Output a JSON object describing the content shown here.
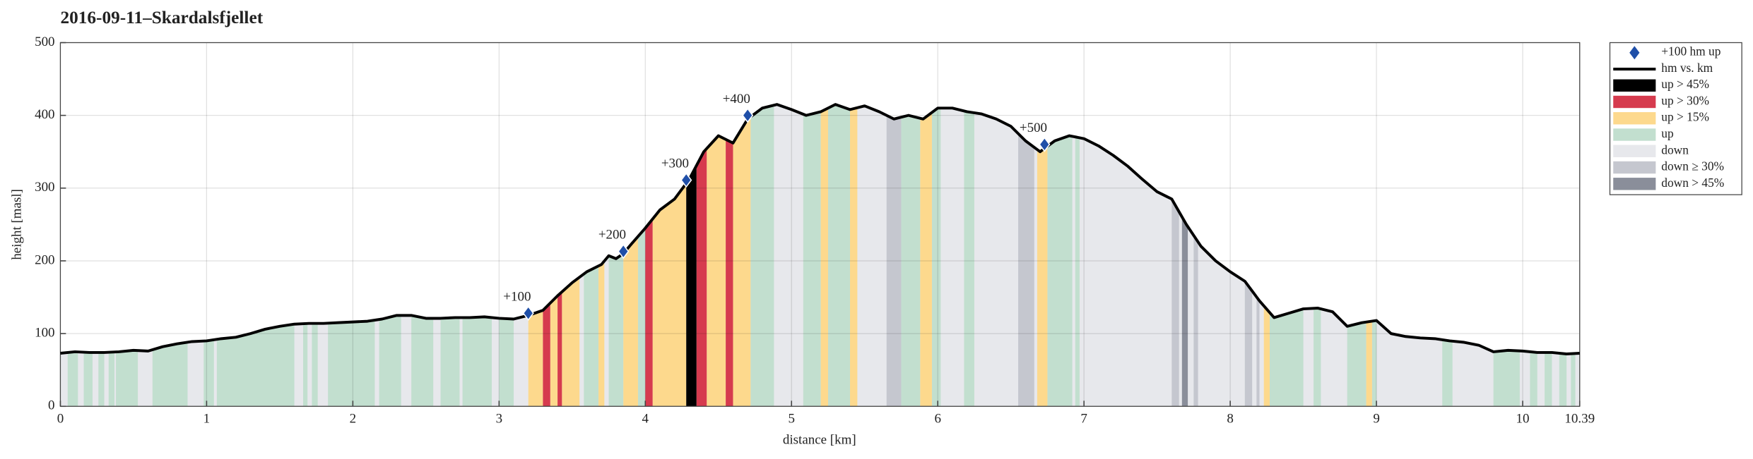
{
  "chart_data": {
    "type": "elevation-profile",
    "title": "2016-09-11–Skardalsfjellet",
    "x_label": "distance [km]",
    "y_label": "height [masl]",
    "xlim": [
      0,
      10.39
    ],
    "xticks": [
      0,
      1,
      2,
      3,
      4,
      5,
      6,
      7,
      8,
      9,
      10,
      10.39
    ],
    "ylim": [
      0,
      500
    ],
    "yticks": [
      0,
      100,
      200,
      300,
      400,
      500
    ],
    "grid": true,
    "x": [
      0,
      0.1,
      0.2,
      0.3,
      0.4,
      0.5,
      0.6,
      0.7,
      0.8,
      0.9,
      1.0,
      1.1,
      1.2,
      1.3,
      1.4,
      1.5,
      1.6,
      1.7,
      1.8,
      1.9,
      2.0,
      2.1,
      2.2,
      2.3,
      2.4,
      2.5,
      2.6,
      2.7,
      2.8,
      2.9,
      3.0,
      3.1,
      3.2,
      3.3,
      3.4,
      3.5,
      3.6,
      3.7,
      3.75,
      3.8,
      3.85,
      3.9,
      4.0,
      4.1,
      4.2,
      4.3,
      4.4,
      4.5,
      4.6,
      4.7,
      4.8,
      4.9,
      5.0,
      5.1,
      5.2,
      5.3,
      5.4,
      5.5,
      5.6,
      5.7,
      5.8,
      5.9,
      6.0,
      6.1,
      6.2,
      6.3,
      6.4,
      6.5,
      6.6,
      6.7,
      6.8,
      6.9,
      7.0,
      7.1,
      7.2,
      7.3,
      7.4,
      7.5,
      7.6,
      7.7,
      7.8,
      7.9,
      8.0,
      8.1,
      8.2,
      8.3,
      8.4,
      8.5,
      8.6,
      8.7,
      8.8,
      8.9,
      9.0,
      9.1,
      9.2,
      9.3,
      9.4,
      9.5,
      9.6,
      9.7,
      9.8,
      9.9,
      10.0,
      10.1,
      10.2,
      10.3,
      10.39
    ],
    "series": [
      {
        "name": "hm vs. km",
        "color": "#000000",
        "values": [
          73,
          75,
          74,
          74,
          75,
          77,
          76,
          82,
          86,
          89,
          90,
          93,
          95,
          100,
          106,
          110,
          113,
          114,
          114,
          115,
          116,
          117,
          120,
          125,
          125,
          121,
          121,
          122,
          122,
          123,
          121,
          120,
          125,
          132,
          152,
          170,
          185,
          195,
          207,
          203,
          210,
          222,
          245,
          270,
          285,
          312,
          350,
          372,
          362,
          395,
          410,
          415,
          408,
          400,
          405,
          415,
          408,
          413,
          405,
          395,
          400,
          395,
          410,
          410,
          405,
          402,
          395,
          385,
          365,
          350,
          365,
          372,
          368,
          358,
          345,
          330,
          312,
          295,
          285,
          250,
          220,
          200,
          185,
          172,
          145,
          122,
          128,
          134,
          135,
          130,
          110,
          115,
          118,
          100,
          96,
          94,
          93,
          90,
          88,
          84,
          75,
          77,
          76,
          74,
          74,
          72,
          73
        ]
      }
    ],
    "markers": {
      "name": "+100 hm up",
      "color": "#1f4fa8",
      "x": [
        3.2,
        3.85,
        4.28,
        4.7,
        6.73
      ],
      "values": [
        128,
        213,
        311,
        400,
        360
      ],
      "labels": [
        "+100",
        "+200",
        "+300",
        "+400",
        "+500"
      ]
    },
    "band_series": [
      {
        "name": "down",
        "color": "#e7e8ec",
        "intervals": [
          [
            0,
            10.39
          ]
        ]
      },
      {
        "name": "up",
        "color": "#c2dfcf",
        "intervals": [
          [
            0.05,
            0.12
          ],
          [
            0.16,
            0.22
          ],
          [
            0.26,
            0.3
          ],
          [
            0.33,
            0.37
          ],
          [
            0.38,
            0.53
          ],
          [
            0.63,
            0.87
          ],
          [
            0.98,
            1.05
          ],
          [
            1.07,
            1.6
          ],
          [
            1.66,
            1.69
          ],
          [
            1.72,
            1.76
          ],
          [
            1.83,
            2.15
          ],
          [
            2.18,
            2.33
          ],
          [
            2.4,
            2.55
          ],
          [
            2.6,
            2.73
          ],
          [
            2.75,
            2.95
          ],
          [
            3.0,
            3.1
          ],
          [
            3.58,
            3.68
          ],
          [
            3.75,
            3.85
          ],
          [
            3.95,
            4.0
          ],
          [
            4.72,
            4.88
          ],
          [
            5.08,
            5.2
          ],
          [
            5.25,
            5.4
          ],
          [
            5.75,
            5.88
          ],
          [
            5.96,
            6.02
          ],
          [
            6.18,
            6.25
          ],
          [
            6.75,
            6.92
          ],
          [
            6.94,
            6.97
          ],
          [
            8.27,
            8.5
          ],
          [
            8.57,
            8.62
          ],
          [
            8.8,
            8.93
          ],
          [
            8.97,
            9.0
          ],
          [
            9.45,
            9.52
          ],
          [
            9.8,
            9.98
          ],
          [
            10.05,
            10.1
          ],
          [
            10.15,
            10.2
          ],
          [
            10.25,
            10.3
          ],
          [
            10.33,
            10.36
          ]
        ]
      },
      {
        "name": "up > 15%",
        "color": "#fdd98d",
        "intervals": [
          [
            3.2,
            3.3
          ],
          [
            3.35,
            3.4
          ],
          [
            3.43,
            3.55
          ],
          [
            3.68,
            3.72
          ],
          [
            3.85,
            3.95
          ],
          [
            4.05,
            4.28
          ],
          [
            4.42,
            4.55
          ],
          [
            4.6,
            4.72
          ],
          [
            5.2,
            5.25
          ],
          [
            5.4,
            5.45
          ],
          [
            5.88,
            5.96
          ],
          [
            6.68,
            6.75
          ],
          [
            8.23,
            8.27
          ],
          [
            8.93,
            8.97
          ]
        ]
      },
      {
        "name": "up > 30%",
        "color": "#d63b4e",
        "intervals": [
          [
            3.3,
            3.35
          ],
          [
            3.4,
            3.43
          ],
          [
            4.0,
            4.05
          ],
          [
            4.35,
            4.42
          ],
          [
            4.55,
            4.6
          ]
        ]
      },
      {
        "name": "up > 45%",
        "color": "#000000",
        "intervals": [
          [
            4.28,
            4.35
          ]
        ]
      },
      {
        "name": "down ≥ 30%",
        "color": "#c5c7cf",
        "intervals": [
          [
            5.65,
            5.75
          ],
          [
            6.55,
            6.66
          ],
          [
            7.6,
            7.65
          ],
          [
            7.75,
            7.78
          ],
          [
            8.1,
            8.15
          ],
          [
            8.18,
            8.2
          ]
        ]
      },
      {
        "name": "down > 45%",
        "color": "#8a8e9a",
        "intervals": [
          [
            7.67,
            7.71
          ]
        ]
      }
    ],
    "legend_order": [
      "up > 45%",
      "up > 30%",
      "up > 15%",
      "up",
      "down",
      "down ≥ 30%",
      "down > 45%"
    ],
    "legend": "outside-right"
  }
}
